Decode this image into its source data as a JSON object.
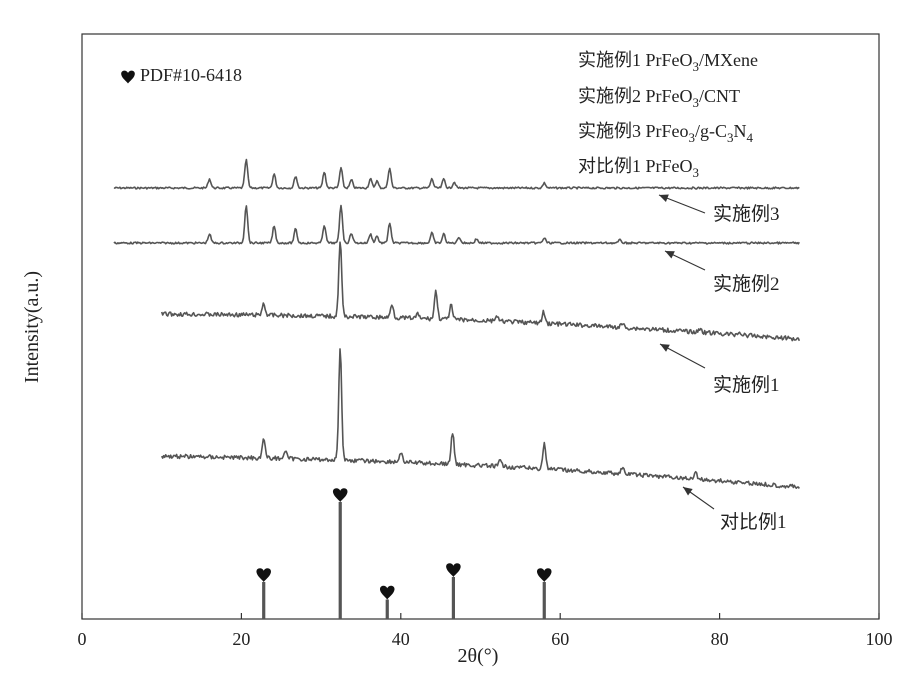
{
  "chart_data": {
    "type": "line",
    "xlabel": "2θ(°)",
    "ylabel": "Intensity(a.u.)",
    "xlim": [
      0,
      100
    ],
    "xticks": [
      0,
      20,
      40,
      60,
      80,
      100
    ],
    "grid": false,
    "legend_position": "top-right",
    "legend_entries": [
      {
        "prefix": "实施例1 PrFeO",
        "sub": "3",
        "suffix": "/MXene",
        "sub2": "",
        "suffix2": ""
      },
      {
        "prefix": "实施例2 PrFeO",
        "sub": "3",
        "suffix": "/CNT",
        "sub2": "",
        "suffix2": ""
      },
      {
        "prefix": "实施例3 PrFeo",
        "sub": "3",
        "suffix": "/g-C",
        "sub2": "3",
        "suffix2": "N",
        "sub3": "4"
      },
      {
        "prefix": "对比例1 PrFeO",
        "sub": "3",
        "suffix": "",
        "sub2": "",
        "suffix2": ""
      }
    ],
    "reference": {
      "label": "PDF#10-6418",
      "peaks": [
        {
          "x": 22.8,
          "intensity": 0.36
        },
        {
          "x": 32.4,
          "intensity": 1.0
        },
        {
          "x": 38.3,
          "intensity": 0.22
        },
        {
          "x": 46.6,
          "intensity": 0.4
        },
        {
          "x": 58.0,
          "intensity": 0.36
        }
      ]
    },
    "series": [
      {
        "label": "实施例3",
        "x_start": 4,
        "x_end": 90,
        "baseline": 0.0,
        "noise": 0.3,
        "peaks": [
          {
            "x": 16.0,
            "h": 9
          },
          {
            "x": 20.6,
            "h": 28
          },
          {
            "x": 24.1,
            "h": 14
          },
          {
            "x": 26.8,
            "h": 12
          },
          {
            "x": 30.4,
            "h": 16
          },
          {
            "x": 32.5,
            "h": 20
          },
          {
            "x": 33.8,
            "h": 8
          },
          {
            "x": 36.2,
            "h": 9
          },
          {
            "x": 37.0,
            "h": 7
          },
          {
            "x": 38.6,
            "h": 20
          },
          {
            "x": 43.9,
            "h": 9
          },
          {
            "x": 45.4,
            "h": 9
          },
          {
            "x": 46.7,
            "h": 6
          },
          {
            "x": 58.0,
            "h": 5
          }
        ]
      },
      {
        "label": "实施例2",
        "x_start": 4,
        "x_end": 90,
        "baseline": 0.0,
        "noise": 0.3,
        "peaks": [
          {
            "x": 16.0,
            "h": 9
          },
          {
            "x": 20.6,
            "h": 38
          },
          {
            "x": 24.1,
            "h": 17
          },
          {
            "x": 26.8,
            "h": 14
          },
          {
            "x": 30.4,
            "h": 18
          },
          {
            "x": 32.5,
            "h": 38
          },
          {
            "x": 33.8,
            "h": 10
          },
          {
            "x": 36.2,
            "h": 9
          },
          {
            "x": 37.0,
            "h": 7
          },
          {
            "x": 38.6,
            "h": 20
          },
          {
            "x": 43.9,
            "h": 10
          },
          {
            "x": 45.4,
            "h": 9
          },
          {
            "x": 47.3,
            "h": 6
          },
          {
            "x": 49.5,
            "h": 4
          },
          {
            "x": 58.0,
            "h": 5
          },
          {
            "x": 67.5,
            "h": 3
          }
        ]
      },
      {
        "label": "实施例1",
        "x_start": 10,
        "x_end": 90,
        "baseline": 0.0,
        "noise": 0.7,
        "peaks": [
          {
            "x": 22.8,
            "h": 12
          },
          {
            "x": 32.4,
            "h": 76
          },
          {
            "x": 38.9,
            "h": 14
          },
          {
            "x": 42.1,
            "h": 4
          },
          {
            "x": 44.4,
            "h": 28
          },
          {
            "x": 46.3,
            "h": 14
          },
          {
            "x": 52.0,
            "h": 5
          },
          {
            "x": 57.9,
            "h": 11
          },
          {
            "x": 67.8,
            "h": 4
          },
          {
            "x": 77.6,
            "h": 4
          },
          {
            "x": 82.5,
            "h": 3
          }
        ]
      },
      {
        "label": "对比例1",
        "x_start": 10,
        "x_end": 90,
        "baseline": 0.0,
        "noise": 0.7,
        "peaks": [
          {
            "x": 22.8,
            "h": 20
          },
          {
            "x": 25.5,
            "h": 8
          },
          {
            "x": 32.4,
            "h": 112
          },
          {
            "x": 40.0,
            "h": 10
          },
          {
            "x": 46.5,
            "h": 32
          },
          {
            "x": 52.5,
            "h": 6
          },
          {
            "x": 58.0,
            "h": 26
          },
          {
            "x": 67.8,
            "h": 6
          },
          {
            "x": 77.0,
            "h": 6
          }
        ]
      }
    ]
  }
}
